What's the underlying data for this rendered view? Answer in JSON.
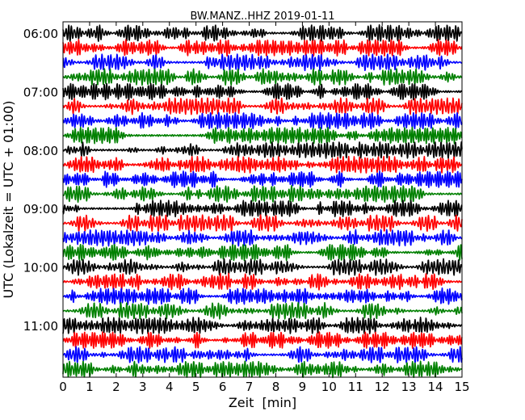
{
  "chart_data": {
    "type": "line",
    "title": "BW.MANZ..HHZ 2019-01-11",
    "xlabel": "Zeit  [min]",
    "ylabel": "UTC (Lokalzeit = UTC + 01:00)",
    "xlim": [
      0,
      15
    ],
    "x_ticks": [
      "0",
      "1",
      "2",
      "3",
      "4",
      "5",
      "6",
      "7",
      "8",
      "9",
      "10",
      "11",
      "12",
      "13",
      "14",
      "15"
    ],
    "y_ticks": [
      "06:00",
      "07:00",
      "08:00",
      "09:00",
      "10:00",
      "11:00"
    ],
    "series_colors": [
      "#000000",
      "#ff0000",
      "#0000ff",
      "#008000"
    ],
    "trace_count": 24,
    "trace_interval_min": 15,
    "first_trace_time": "06:00",
    "grid": false
  }
}
